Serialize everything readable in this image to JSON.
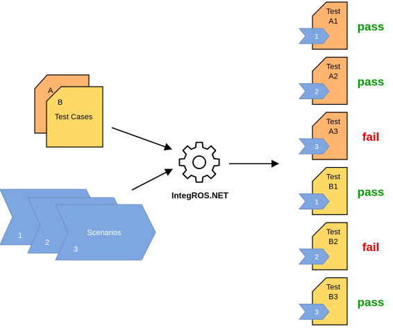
{
  "test_cases": {
    "card_a_letter": "A",
    "card_b_letter": "B",
    "label": "Test Cases"
  },
  "scenarios": {
    "label": "Scenarios",
    "numbers": [
      "1",
      "2",
      "3"
    ]
  },
  "engine": {
    "label": "IntegROS.NET"
  },
  "results": [
    {
      "line1": "Test",
      "line2": "A1",
      "scenario": "1",
      "status": "pass",
      "card_color": "#FFB570",
      "status_color": "#009900"
    },
    {
      "line1": "Test",
      "line2": "A2",
      "scenario": "2",
      "status": "pass",
      "card_color": "#FFB570",
      "status_color": "#009900"
    },
    {
      "line1": "Test",
      "line2": "A3",
      "scenario": "3",
      "status": "fail",
      "card_color": "#FFB570",
      "status_color": "#E60000"
    },
    {
      "line1": "Test",
      "line2": "B1",
      "scenario": "1",
      "status": "pass",
      "card_color": "#FFD966",
      "status_color": "#009900"
    },
    {
      "line1": "Test",
      "line2": "B2",
      "scenario": "2",
      "status": "fail",
      "card_color": "#FFD966",
      "status_color": "#E60000"
    },
    {
      "line1": "Test",
      "line2": "B3",
      "scenario": "3",
      "status": "pass",
      "card_color": "#FFD966",
      "status_color": "#009900"
    }
  ],
  "colors": {
    "orange_card": "#FFB570",
    "yellow_card": "#FFD966",
    "chevron": "#7EA6E0",
    "pass": "#009900",
    "fail": "#E60000"
  }
}
